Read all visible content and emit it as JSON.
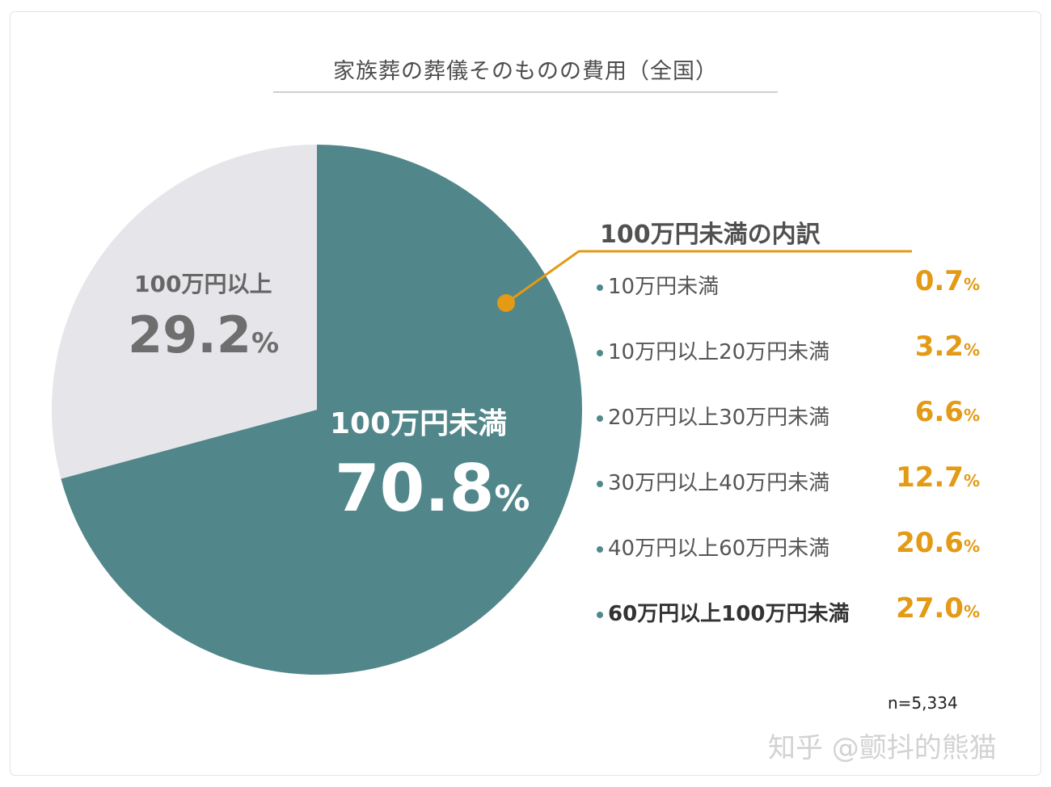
{
  "chart_data": {
    "type": "pie",
    "title": "家族葬の葬儀そのものの費用（全国）",
    "colors": {
      "under_100": "#51868a",
      "over_100": "#e6e6ea",
      "leader": "#e39a14",
      "accent_value": "#e39a14"
    },
    "slices": [
      {
        "label": "100万円未満",
        "value": 70.8,
        "display": "70.8"
      },
      {
        "label": "100万円以上",
        "value": 29.2,
        "display": "29.2"
      }
    ],
    "percent_unit": "%",
    "breakdown": {
      "title": "100万円未満の内訳",
      "items": [
        {
          "label": "10万円未満",
          "value": 0.7,
          "display": "0.7"
        },
        {
          "label": "10万円以上20万円未満",
          "value": 3.2,
          "display": "3.2"
        },
        {
          "label": "20万円以上30万円未満",
          "value": 6.6,
          "display": "6.6"
        },
        {
          "label": "30万円以上40万円未満",
          "value": 12.7,
          "display": "12.7"
        },
        {
          "label": "40万円以上60万円未満",
          "value": 20.6,
          "display": "20.6"
        },
        {
          "label": "60万円以上100万円未満",
          "value": 27.0,
          "display": "27.0"
        }
      ]
    },
    "sample_size": "n=5,334"
  },
  "watermark": "知乎 @颤抖的熊猫"
}
